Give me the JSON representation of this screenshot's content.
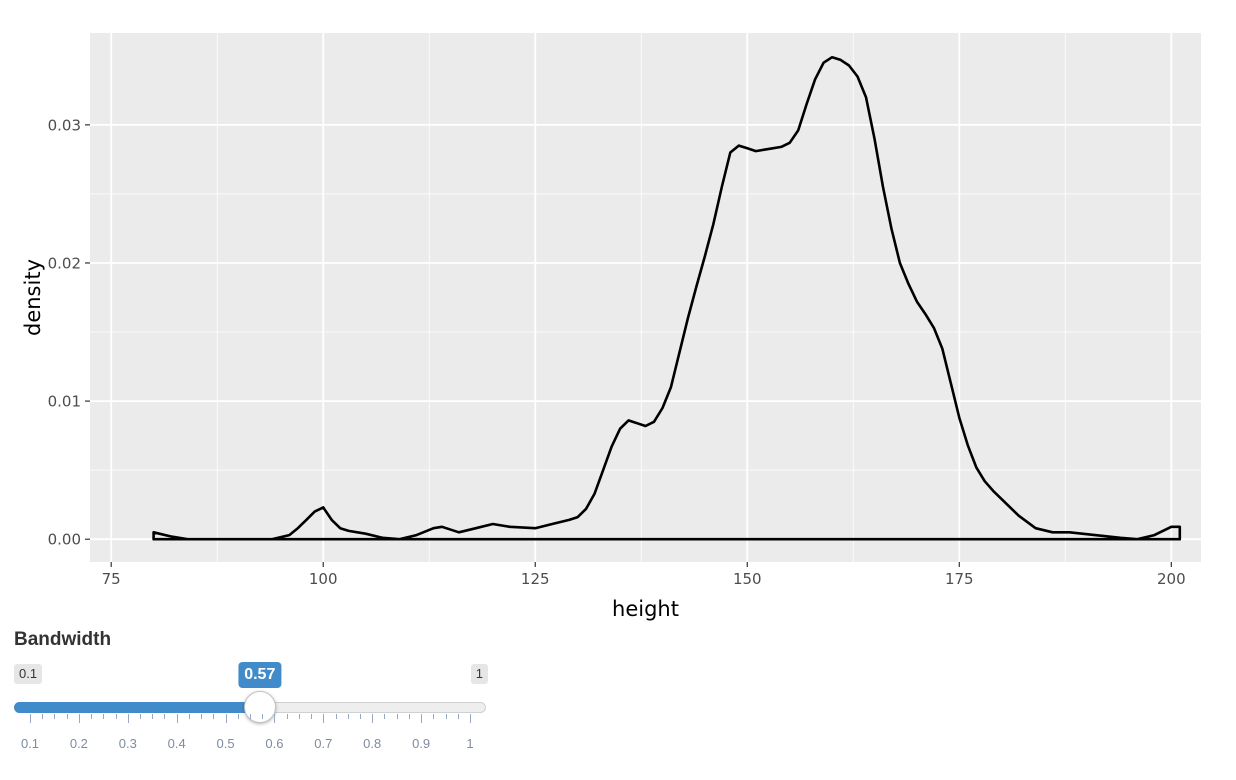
{
  "chart_data": {
    "type": "area",
    "title": "",
    "xlabel": "height",
    "ylabel": "density",
    "xlim": [
      72.5,
      203.5
    ],
    "ylim": [
      -0.00165,
      0.03665
    ],
    "xticks": [
      75,
      100,
      125,
      150,
      175,
      200
    ],
    "xtick_labels": [
      "75",
      "100",
      "125",
      "150",
      "175",
      "200"
    ],
    "yticks": [
      0.0,
      0.01,
      0.02,
      0.03
    ],
    "ytick_labels": [
      "0.00",
      "0.01",
      "0.02",
      "0.03"
    ],
    "grid": true,
    "background": "#ebebeb",
    "grid_color": "#ffffff",
    "line_color": "#000000",
    "series": [
      {
        "x": [
          80,
          82,
          84,
          86,
          90,
          94,
          96,
          97,
          98,
          99,
          100,
          101,
          102,
          103,
          105,
          107,
          109,
          111,
          113,
          114,
          116,
          118,
          120,
          122,
          125,
          127,
          129,
          130,
          131,
          132,
          133,
          134,
          135,
          136,
          137,
          138,
          139,
          140,
          141,
          142,
          143,
          144,
          145,
          146,
          147,
          148,
          149,
          150,
          151,
          152,
          153,
          154,
          155,
          156,
          157,
          158,
          159,
          160,
          161,
          162,
          163,
          164,
          165,
          166,
          167,
          168,
          169,
          170,
          171,
          172,
          173,
          174,
          175,
          176,
          177,
          178,
          179,
          180,
          182,
          184,
          186,
          188,
          191,
          194,
          196,
          198,
          200,
          201
        ],
        "y": [
          0.0005,
          0.0002,
          0.0,
          0.0,
          0.0,
          0.0,
          0.0003,
          0.0008,
          0.0014,
          0.002,
          0.0023,
          0.0014,
          0.0008,
          0.0006,
          0.0004,
          0.0001,
          0.0,
          0.0003,
          0.0008,
          0.0009,
          0.0005,
          0.0008,
          0.0011,
          0.0009,
          0.0008,
          0.0011,
          0.0014,
          0.0016,
          0.0022,
          0.0033,
          0.005,
          0.0067,
          0.008,
          0.0086,
          0.0084,
          0.0082,
          0.0085,
          0.0095,
          0.011,
          0.0135,
          0.016,
          0.0183,
          0.0205,
          0.0228,
          0.0255,
          0.028,
          0.0285,
          0.0283,
          0.0281,
          0.0282,
          0.0283,
          0.0284,
          0.0287,
          0.0296,
          0.0315,
          0.0333,
          0.0345,
          0.0349,
          0.0347,
          0.0343,
          0.0335,
          0.032,
          0.029,
          0.0255,
          0.0225,
          0.02,
          0.0185,
          0.0172,
          0.0163,
          0.0153,
          0.0138,
          0.0113,
          0.0088,
          0.0068,
          0.0052,
          0.0042,
          0.0035,
          0.0029,
          0.0017,
          0.0008,
          0.0005,
          0.0005,
          0.0003,
          0.0001,
          0.0,
          0.0003,
          0.0009,
          0.0009
        ]
      }
    ]
  },
  "slider": {
    "label": "Bandwidth",
    "min_label": "0.1",
    "max_label": "1",
    "value_label": "0.57",
    "min": 0.1,
    "max": 1,
    "value": 0.57,
    "fill_color": "#428bca",
    "grid_labels": [
      "0.1",
      "0.2",
      "0.3",
      "0.4",
      "0.5",
      "0.6",
      "0.7",
      "0.8",
      "0.9",
      "1"
    ]
  }
}
